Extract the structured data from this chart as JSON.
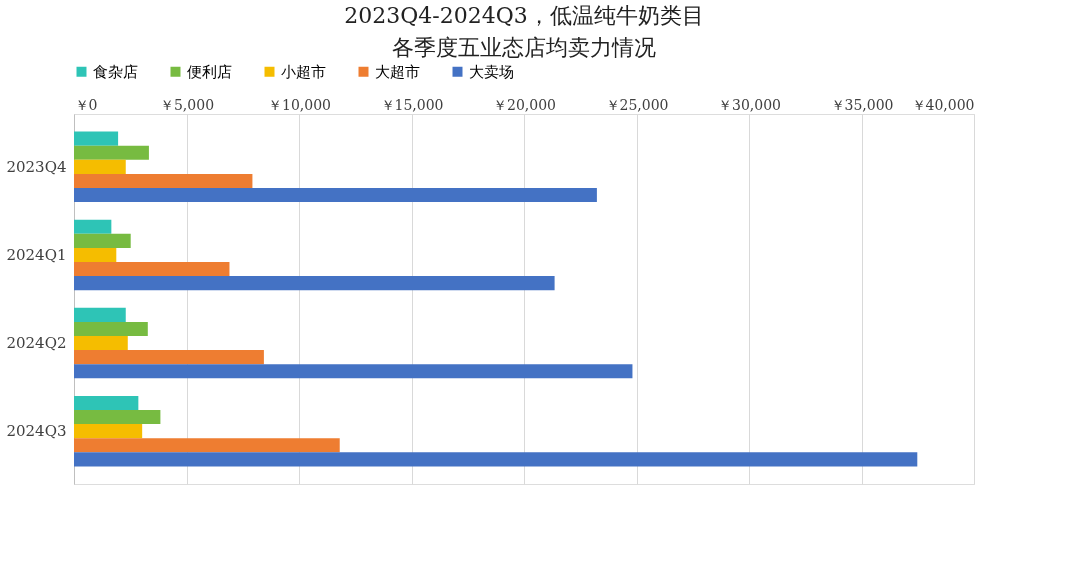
{
  "chart_data": {
    "type": "bar",
    "orientation": "horizontal",
    "title": "2023Q4-2024Q3，低温纯牛奶类目",
    "subtitle": "各季度五业态店均卖力情况",
    "categories": [
      "2023Q4",
      "2024Q1",
      "2024Q2",
      "2024Q3"
    ],
    "series": [
      {
        "name": "食杂店",
        "color": "#2ec4b6",
        "values": [
          1960,
          1660,
          2300,
          2860
        ]
      },
      {
        "name": "便利店",
        "color": "#77bb41",
        "values": [
          3330,
          2520,
          3280,
          3840
        ]
      },
      {
        "name": "小超市",
        "color": "#f5bd00",
        "values": [
          2300,
          1880,
          2390,
          3030
        ]
      },
      {
        "name": "大超市",
        "color": "#ee7d31",
        "values": [
          7930,
          6910,
          8440,
          11810
        ]
      },
      {
        "name": "大卖场",
        "color": "#4472c4",
        "values": [
          23240,
          21360,
          24820,
          37480
        ]
      }
    ],
    "xlim": [
      0,
      40000
    ],
    "xticks": [
      {
        "value": 0,
        "label": "￥0"
      },
      {
        "value": 5000,
        "label": "￥5,000"
      },
      {
        "value": 10000,
        "label": "￥10,000"
      },
      {
        "value": 15000,
        "label": "￥15,000"
      },
      {
        "value": 20000,
        "label": "￥20,000"
      },
      {
        "value": 25000,
        "label": "￥25,000"
      },
      {
        "value": 30000,
        "label": "￥30,000"
      },
      {
        "value": 35000,
        "label": "￥35,000"
      },
      {
        "value": 40000,
        "label": "￥40,000"
      }
    ],
    "grid": "x",
    "legend": "top"
  }
}
